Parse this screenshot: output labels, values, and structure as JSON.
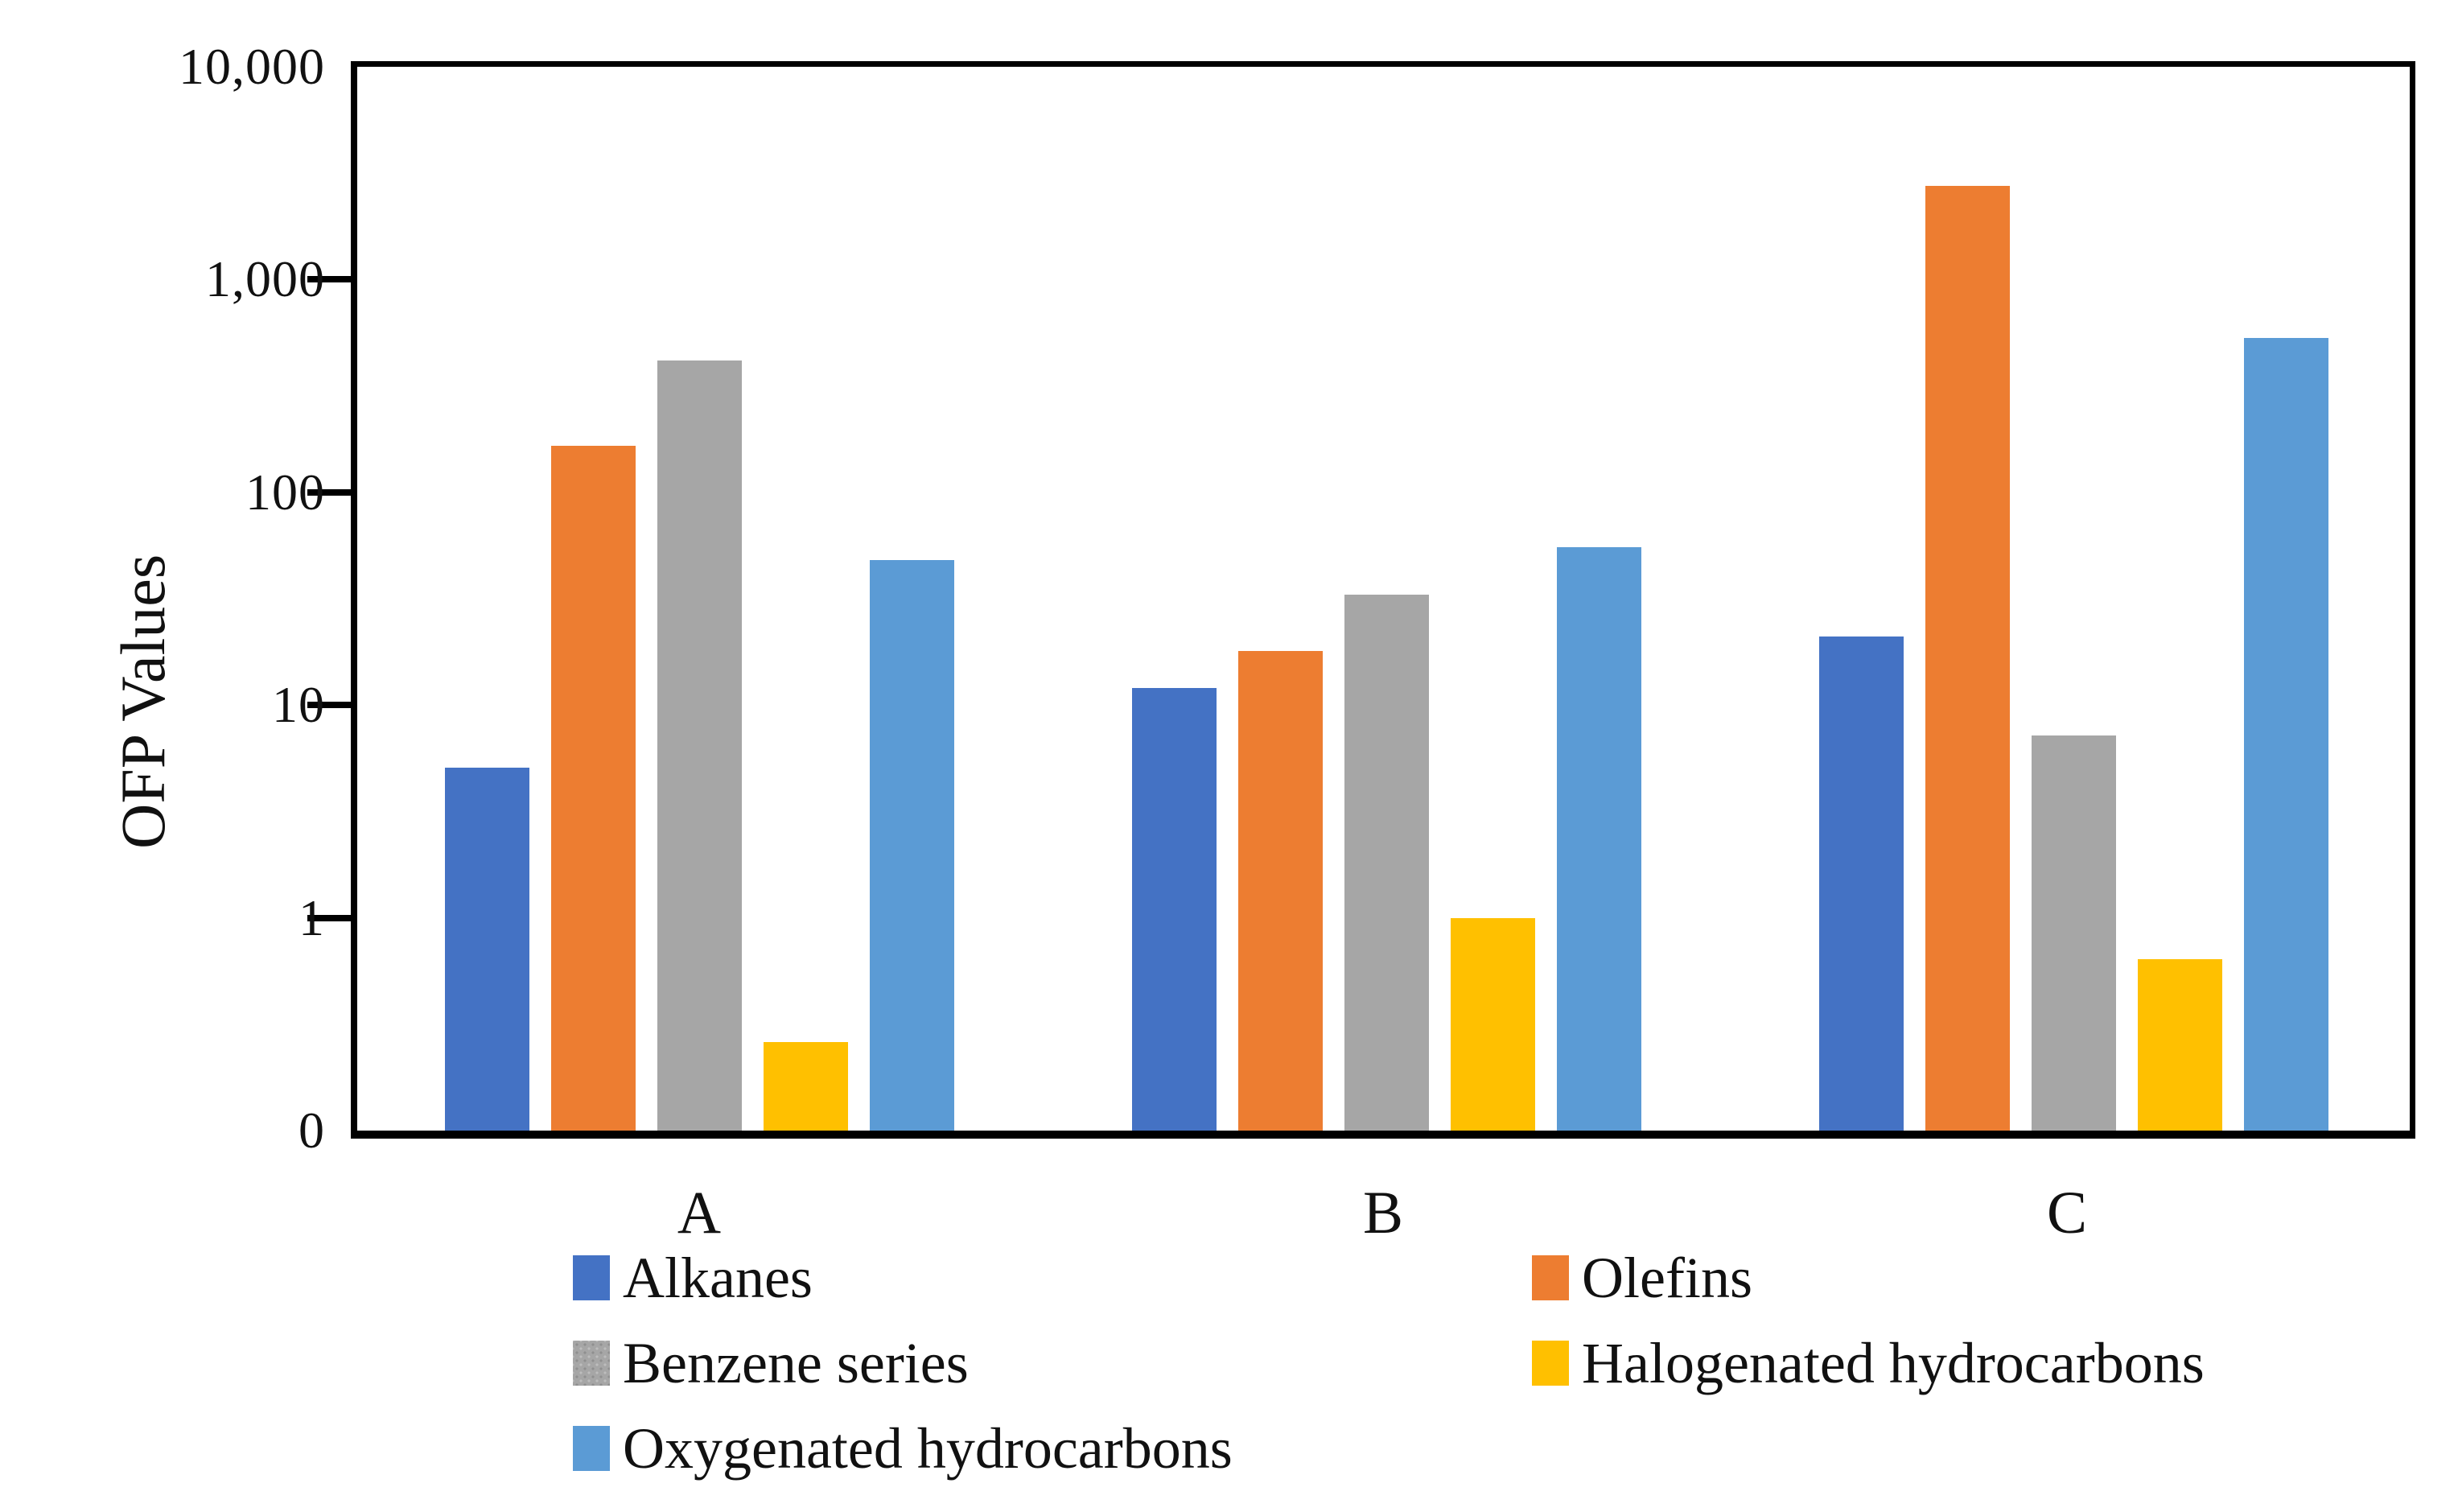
{
  "figure": {
    "background": "#ffffff",
    "axis_color": "#000000",
    "text_color": "#111111"
  },
  "chart_data": {
    "type": "bar",
    "title": "",
    "xlabel": "",
    "ylabel": "OFP Values",
    "yscale": "log",
    "y_axis": {
      "tick_labels": [
        "10,000",
        "1,000",
        "100",
        "10",
        "1",
        "0"
      ],
      "tick_values": [
        10000,
        1000,
        100,
        10,
        1,
        0.1
      ],
      "axis_min": 0.1,
      "axis_max": 10000,
      "note": "log scale, bottom tick rendered as 0"
    },
    "categories": [
      "A",
      "B",
      "C"
    ],
    "series": [
      {
        "name": "Alkanes",
        "color": "#4472C4",
        "texture": "solid",
        "values": [
          5.1,
          12,
          21
        ]
      },
      {
        "name": "Olefins",
        "color": "#ED7D31",
        "texture": "solid",
        "values": [
          165,
          18,
          2750
        ]
      },
      {
        "name": "Benzene series",
        "color": "#A6A6A6",
        "texture": "stipple",
        "values": [
          415,
          33,
          7.2
        ]
      },
      {
        "name": "Halogenated hydrocarbons",
        "color": "#FFC000",
        "texture": "solid",
        "values": [
          0.26,
          1.0,
          0.64
        ]
      },
      {
        "name": "Oxygenated hydrocarbons",
        "color": "#5B9BD5",
        "texture": "solid",
        "values": [
          48,
          55,
          530
        ]
      }
    ],
    "legend": {
      "position": "bottom",
      "columns": 2,
      "order_row_major": [
        "Alkanes",
        "Olefins",
        "Benzene series",
        "Halogenated hydrocarbons",
        "Oxygenated hydrocarbons"
      ]
    },
    "grid": "off"
  }
}
